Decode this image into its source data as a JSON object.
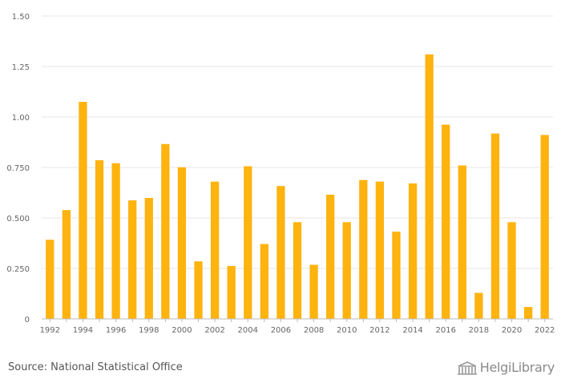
{
  "chart_data": {
    "type": "bar",
    "categories": [
      "1992",
      "1993",
      "1994",
      "1995",
      "1996",
      "1997",
      "1998",
      "1999",
      "2000",
      "2001",
      "2002",
      "2003",
      "2004",
      "2005",
      "2006",
      "2007",
      "2008",
      "2009",
      "2010",
      "2011",
      "2012",
      "2013",
      "2014",
      "2015",
      "2016",
      "2017",
      "2018",
      "2019",
      "2020",
      "2021",
      "2022"
    ],
    "values": [
      0.392,
      0.539,
      1.075,
      0.786,
      0.771,
      0.587,
      0.599,
      0.866,
      0.751,
      0.285,
      0.68,
      0.262,
      0.756,
      0.371,
      0.658,
      0.479,
      0.268,
      0.615,
      0.479,
      0.688,
      0.68,
      0.432,
      0.671,
      1.31,
      0.962,
      0.76,
      0.129,
      0.918,
      0.479,
      0.059,
      0.911
    ],
    "x_tick_labels": [
      "1992",
      "1994",
      "1996",
      "1998",
      "2000",
      "2002",
      "2004",
      "2006",
      "2008",
      "2010",
      "2012",
      "2014",
      "2016",
      "2018",
      "2020",
      "2022"
    ],
    "y_ticks": [
      0,
      0.25,
      0.5,
      0.75,
      1.0,
      1.25,
      1.5
    ],
    "y_tick_labels": [
      "0",
      "0.250",
      "0.500",
      "0.750",
      "1.00",
      "1.25",
      "1.50"
    ],
    "ylim": [
      0,
      1.5
    ],
    "grid": true,
    "bar_color": "#FFB30F",
    "title": "",
    "xlabel": "",
    "ylabel": ""
  },
  "footer": {
    "source": "Source: National Statistical Office",
    "logo_text": "HelgiLibrary"
  }
}
